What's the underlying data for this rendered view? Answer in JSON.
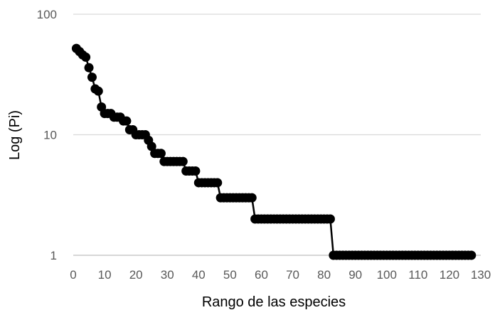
{
  "chart_data": {
    "type": "line",
    "title": "",
    "xlabel": "Rango de las especies",
    "ylabel": "Log (Pi)",
    "x_scale": "linear",
    "y_scale": "log",
    "xlim": [
      0,
      130
    ],
    "ylim": [
      1,
      100
    ],
    "x_ticks": [
      0,
      10,
      20,
      30,
      40,
      50,
      60,
      70,
      80,
      90,
      100,
      110,
      120,
      130
    ],
    "y_ticks": [
      1,
      10,
      100
    ],
    "x_tick_labels": [
      "0",
      "10",
      "20",
      "30",
      "40",
      "50",
      "60",
      "70",
      "80",
      "90",
      "100",
      "110",
      "120",
      "130"
    ],
    "y_tick_labels": [
      "1",
      "10",
      "100"
    ],
    "grid": {
      "horizontal": true,
      "vertical": false
    },
    "legend": "none",
    "series": [
      {
        "color": "#000000",
        "marker": "circle",
        "x": [
          1,
          2,
          3,
          4,
          5,
          6,
          7,
          8,
          9,
          10,
          11,
          12,
          13,
          14,
          15,
          16,
          17,
          18,
          19,
          20,
          21,
          22,
          23,
          24,
          25,
          26,
          27,
          28,
          29,
          30,
          31,
          32,
          33,
          34,
          35,
          36,
          37,
          38,
          39,
          40,
          41,
          42,
          43,
          44,
          45,
          46,
          47,
          48,
          49,
          50,
          51,
          52,
          53,
          54,
          55,
          56,
          57,
          58,
          59,
          60,
          61,
          62,
          63,
          64,
          65,
          66,
          67,
          68,
          69,
          70,
          71,
          72,
          73,
          74,
          75,
          76,
          77,
          78,
          79,
          80,
          81,
          82,
          83,
          84,
          85,
          86,
          87,
          88,
          89,
          90,
          91,
          92,
          93,
          94,
          95,
          96,
          97,
          98,
          99,
          100,
          101,
          102,
          103,
          104,
          105,
          106,
          107,
          108,
          109,
          110,
          111,
          112,
          113,
          114,
          115,
          116,
          117,
          118,
          119,
          120,
          121,
          122,
          123,
          124,
          125,
          126,
          127
        ],
        "values": [
          52,
          49,
          46,
          44,
          36,
          30,
          24,
          23,
          17,
          15,
          15,
          15,
          14,
          14,
          14,
          13,
          13,
          11,
          11,
          10,
          10,
          10,
          10,
          9,
          8,
          7,
          7,
          7,
          6,
          6,
          6,
          6,
          6,
          6,
          6,
          5,
          5,
          5,
          5,
          4,
          4,
          4,
          4,
          4,
          4,
          4,
          3,
          3,
          3,
          3,
          3,
          3,
          3,
          3,
          3,
          3,
          3,
          2,
          2,
          2,
          2,
          2,
          2,
          2,
          2,
          2,
          2,
          2,
          2,
          2,
          2,
          2,
          2,
          2,
          2,
          2,
          2,
          2,
          2,
          2,
          2,
          2,
          1,
          1,
          1,
          1,
          1,
          1,
          1,
          1,
          1,
          1,
          1,
          1,
          1,
          1,
          1,
          1,
          1,
          1,
          1,
          1,
          1,
          1,
          1,
          1,
          1,
          1,
          1,
          1,
          1,
          1,
          1,
          1,
          1,
          1,
          1,
          1,
          1,
          1,
          1,
          1,
          1,
          1,
          1,
          1,
          1
        ]
      }
    ]
  }
}
